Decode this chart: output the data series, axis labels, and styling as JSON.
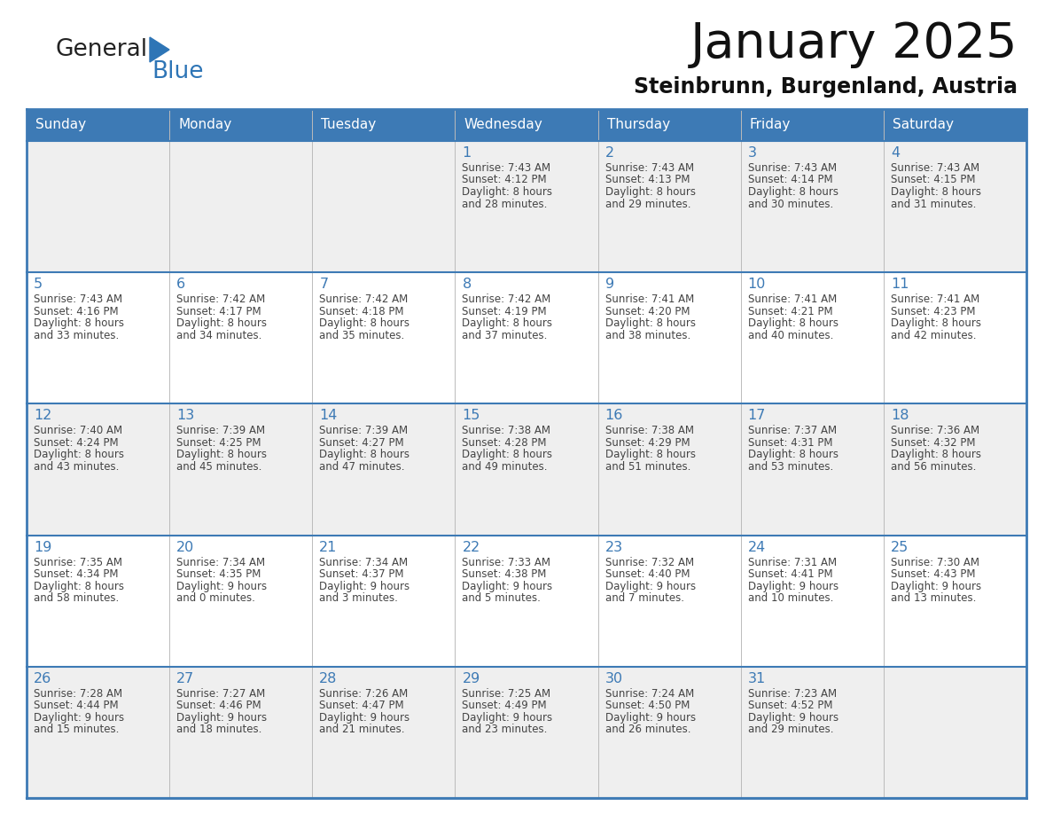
{
  "title": "January 2025",
  "subtitle": "Steinbrunn, Burgenland, Austria",
  "days_of_week": [
    "Sunday",
    "Monday",
    "Tuesday",
    "Wednesday",
    "Thursday",
    "Friday",
    "Saturday"
  ],
  "header_bg": "#3D7AB5",
  "header_text": "#FFFFFF",
  "row_bg_even": "#EFEFEF",
  "row_bg_odd": "#FFFFFF",
  "separator_color": "#3D7AB5",
  "day_number_color": "#3D7AB5",
  "cell_text_color": "#444444",
  "logo_general_color": "#222222",
  "logo_blue_color": "#2E75B6",
  "calendar_data": [
    [
      null,
      null,
      null,
      {
        "day": 1,
        "sunrise": "7:43 AM",
        "sunset": "4:12 PM",
        "daylight": "8 hours",
        "daylight2": "and 28 minutes."
      },
      {
        "day": 2,
        "sunrise": "7:43 AM",
        "sunset": "4:13 PM",
        "daylight": "8 hours",
        "daylight2": "and 29 minutes."
      },
      {
        "day": 3,
        "sunrise": "7:43 AM",
        "sunset": "4:14 PM",
        "daylight": "8 hours",
        "daylight2": "and 30 minutes."
      },
      {
        "day": 4,
        "sunrise": "7:43 AM",
        "sunset": "4:15 PM",
        "daylight": "8 hours",
        "daylight2": "and 31 minutes."
      }
    ],
    [
      {
        "day": 5,
        "sunrise": "7:43 AM",
        "sunset": "4:16 PM",
        "daylight": "8 hours",
        "daylight2": "and 33 minutes."
      },
      {
        "day": 6,
        "sunrise": "7:42 AM",
        "sunset": "4:17 PM",
        "daylight": "8 hours",
        "daylight2": "and 34 minutes."
      },
      {
        "day": 7,
        "sunrise": "7:42 AM",
        "sunset": "4:18 PM",
        "daylight": "8 hours",
        "daylight2": "and 35 minutes."
      },
      {
        "day": 8,
        "sunrise": "7:42 AM",
        "sunset": "4:19 PM",
        "daylight": "8 hours",
        "daylight2": "and 37 minutes."
      },
      {
        "day": 9,
        "sunrise": "7:41 AM",
        "sunset": "4:20 PM",
        "daylight": "8 hours",
        "daylight2": "and 38 minutes."
      },
      {
        "day": 10,
        "sunrise": "7:41 AM",
        "sunset": "4:21 PM",
        "daylight": "8 hours",
        "daylight2": "and 40 minutes."
      },
      {
        "day": 11,
        "sunrise": "7:41 AM",
        "sunset": "4:23 PM",
        "daylight": "8 hours",
        "daylight2": "and 42 minutes."
      }
    ],
    [
      {
        "day": 12,
        "sunrise": "7:40 AM",
        "sunset": "4:24 PM",
        "daylight": "8 hours",
        "daylight2": "and 43 minutes."
      },
      {
        "day": 13,
        "sunrise": "7:39 AM",
        "sunset": "4:25 PM",
        "daylight": "8 hours",
        "daylight2": "and 45 minutes."
      },
      {
        "day": 14,
        "sunrise": "7:39 AM",
        "sunset": "4:27 PM",
        "daylight": "8 hours",
        "daylight2": "and 47 minutes."
      },
      {
        "day": 15,
        "sunrise": "7:38 AM",
        "sunset": "4:28 PM",
        "daylight": "8 hours",
        "daylight2": "and 49 minutes."
      },
      {
        "day": 16,
        "sunrise": "7:38 AM",
        "sunset": "4:29 PM",
        "daylight": "8 hours",
        "daylight2": "and 51 minutes."
      },
      {
        "day": 17,
        "sunrise": "7:37 AM",
        "sunset": "4:31 PM",
        "daylight": "8 hours",
        "daylight2": "and 53 minutes."
      },
      {
        "day": 18,
        "sunrise": "7:36 AM",
        "sunset": "4:32 PM",
        "daylight": "8 hours",
        "daylight2": "and 56 minutes."
      }
    ],
    [
      {
        "day": 19,
        "sunrise": "7:35 AM",
        "sunset": "4:34 PM",
        "daylight": "8 hours",
        "daylight2": "and 58 minutes."
      },
      {
        "day": 20,
        "sunrise": "7:34 AM",
        "sunset": "4:35 PM",
        "daylight": "9 hours",
        "daylight2": "and 0 minutes."
      },
      {
        "day": 21,
        "sunrise": "7:34 AM",
        "sunset": "4:37 PM",
        "daylight": "9 hours",
        "daylight2": "and 3 minutes."
      },
      {
        "day": 22,
        "sunrise": "7:33 AM",
        "sunset": "4:38 PM",
        "daylight": "9 hours",
        "daylight2": "and 5 minutes."
      },
      {
        "day": 23,
        "sunrise": "7:32 AM",
        "sunset": "4:40 PM",
        "daylight": "9 hours",
        "daylight2": "and 7 minutes."
      },
      {
        "day": 24,
        "sunrise": "7:31 AM",
        "sunset": "4:41 PM",
        "daylight": "9 hours",
        "daylight2": "and 10 minutes."
      },
      {
        "day": 25,
        "sunrise": "7:30 AM",
        "sunset": "4:43 PM",
        "daylight": "9 hours",
        "daylight2": "and 13 minutes."
      }
    ],
    [
      {
        "day": 26,
        "sunrise": "7:28 AM",
        "sunset": "4:44 PM",
        "daylight": "9 hours",
        "daylight2": "and 15 minutes."
      },
      {
        "day": 27,
        "sunrise": "7:27 AM",
        "sunset": "4:46 PM",
        "daylight": "9 hours",
        "daylight2": "and 18 minutes."
      },
      {
        "day": 28,
        "sunrise": "7:26 AM",
        "sunset": "4:47 PM",
        "daylight": "9 hours",
        "daylight2": "and 21 minutes."
      },
      {
        "day": 29,
        "sunrise": "7:25 AM",
        "sunset": "4:49 PM",
        "daylight": "9 hours",
        "daylight2": "and 23 minutes."
      },
      {
        "day": 30,
        "sunrise": "7:24 AM",
        "sunset": "4:50 PM",
        "daylight": "9 hours",
        "daylight2": "and 26 minutes."
      },
      {
        "day": 31,
        "sunrise": "7:23 AM",
        "sunset": "4:52 PM",
        "daylight": "9 hours",
        "daylight2": "and 29 minutes."
      },
      null
    ]
  ]
}
